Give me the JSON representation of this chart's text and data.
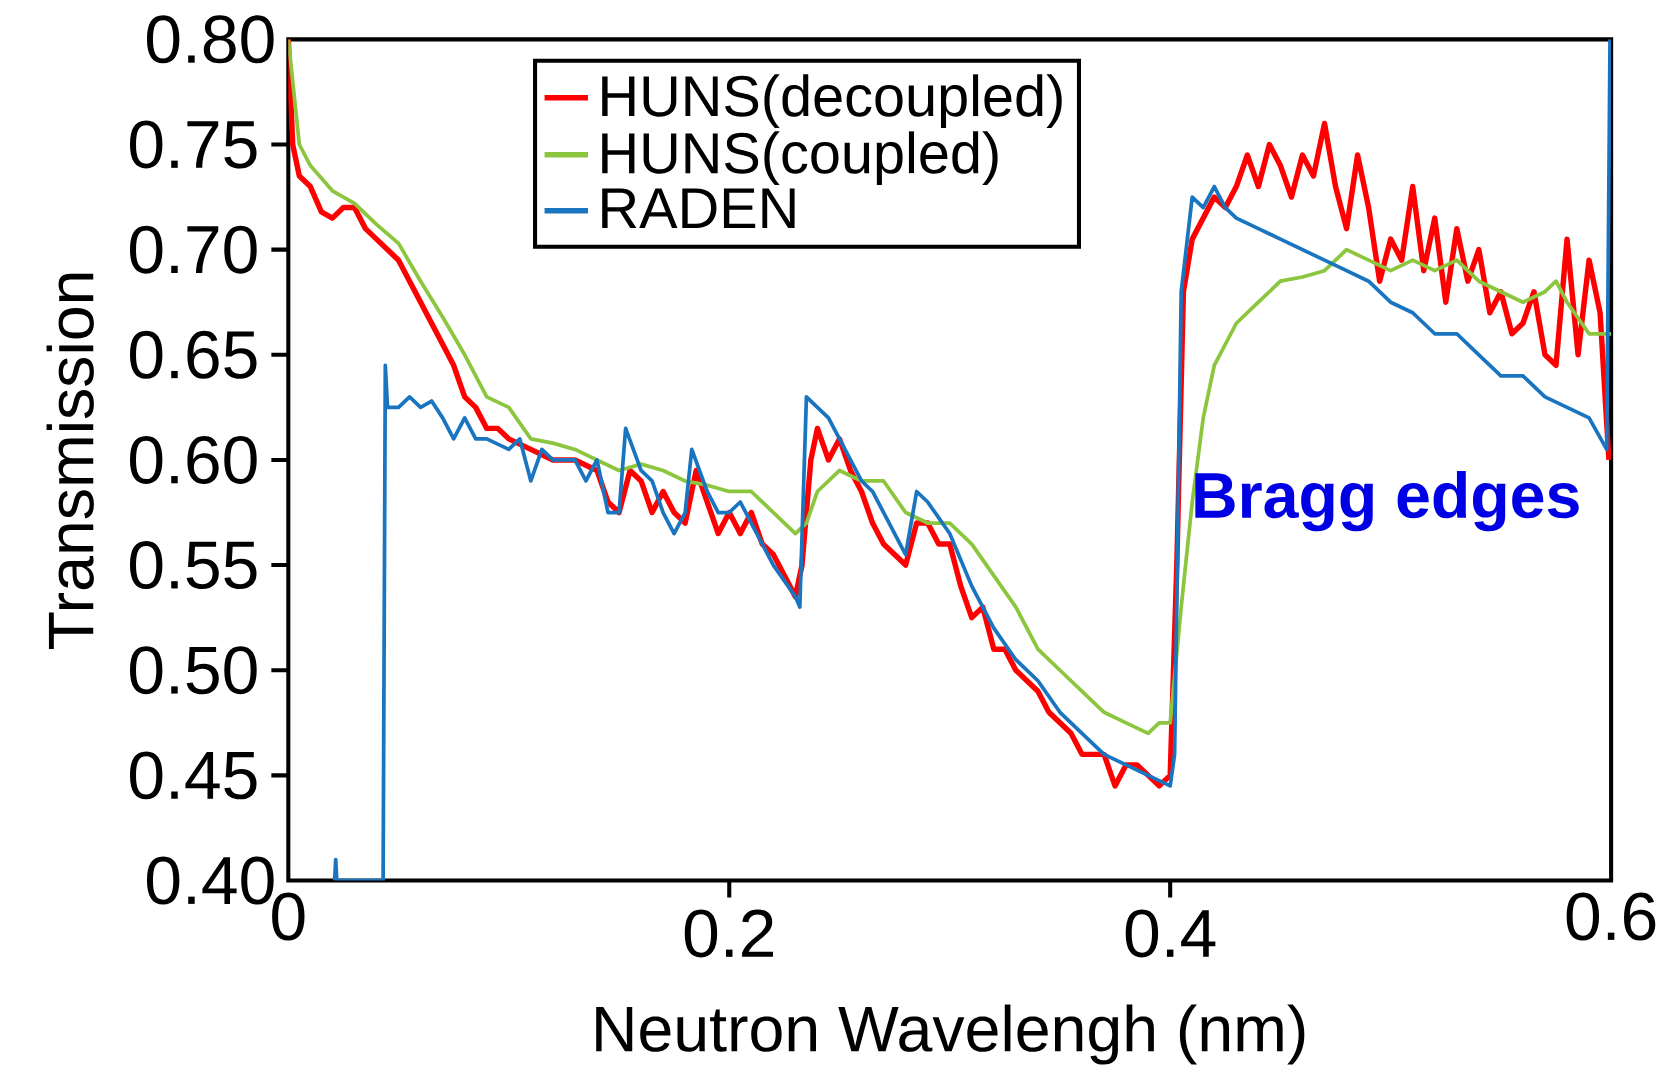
{
  "chart_data": {
    "type": "line",
    "xlabel": "Neutron Wavelengh (nm)",
    "ylabel": "Transmission",
    "xlim": [
      0,
      0.6
    ],
    "xticks": [
      0,
      0.2,
      0.4,
      0.6
    ],
    "ylim": [
      0.4,
      0.8
    ],
    "yticks": [
      {
        "value": 0.4,
        "label": "0.40"
      },
      {
        "value": 0.45,
        "label": "0.45"
      },
      {
        "value": 0.5,
        "label": "0.50"
      },
      {
        "value": 0.55,
        "label": "0.55"
      },
      {
        "value": 0.6,
        "label": "0.60"
      },
      {
        "value": 0.65,
        "label": "0.65"
      },
      {
        "value": 0.7,
        "label": "0.70"
      },
      {
        "value": 0.75,
        "label": "0.75"
      },
      {
        "value": 0.8,
        "label": "0.80"
      }
    ],
    "grid": false,
    "legend": "top",
    "marker": "none",
    "line_style": "solid",
    "annotations": [
      "Bragg edges"
    ],
    "series": [
      {
        "name": "HUNS(decoupled)",
        "color": "#ff0000",
        "x": [
          0.0,
          0.002,
          0.005,
          0.01,
          0.015,
          0.02,
          0.025,
          0.03,
          0.035,
          0.04,
          0.045,
          0.05,
          0.055,
          0.06,
          0.065,
          0.07,
          0.075,
          0.08,
          0.085,
          0.09,
          0.095,
          0.1,
          0.11,
          0.12,
          0.13,
          0.14,
          0.145,
          0.15,
          0.155,
          0.16,
          0.165,
          0.17,
          0.175,
          0.18,
          0.185,
          0.19,
          0.195,
          0.2,
          0.205,
          0.21,
          0.215,
          0.22,
          0.225,
          0.23,
          0.233,
          0.237,
          0.24,
          0.245,
          0.25,
          0.255,
          0.26,
          0.265,
          0.27,
          0.275,
          0.28,
          0.285,
          0.29,
          0.295,
          0.3,
          0.305,
          0.31,
          0.315,
          0.32,
          0.325,
          0.33,
          0.335,
          0.34,
          0.345,
          0.35,
          0.355,
          0.36,
          0.365,
          0.37,
          0.375,
          0.38,
          0.385,
          0.39,
          0.395,
          0.4,
          0.403,
          0.406,
          0.41,
          0.415,
          0.42,
          0.425,
          0.43,
          0.435,
          0.44,
          0.445,
          0.45,
          0.455,
          0.46,
          0.465,
          0.47,
          0.475,
          0.48,
          0.485,
          0.49,
          0.495,
          0.5,
          0.505,
          0.51,
          0.515,
          0.52,
          0.525,
          0.53,
          0.535,
          0.54,
          0.545,
          0.55,
          0.555,
          0.56,
          0.565,
          0.57,
          0.575,
          0.58,
          0.585,
          0.59,
          0.595,
          0.599
        ],
        "values": [
          0.8,
          0.75,
          0.735,
          0.73,
          0.718,
          0.715,
          0.72,
          0.72,
          0.71,
          0.705,
          0.7,
          0.695,
          0.685,
          0.675,
          0.665,
          0.655,
          0.645,
          0.63,
          0.625,
          0.615,
          0.615,
          0.61,
          0.605,
          0.6,
          0.6,
          0.595,
          0.58,
          0.575,
          0.595,
          0.59,
          0.575,
          0.585,
          0.575,
          0.57,
          0.595,
          0.58,
          0.565,
          0.575,
          0.565,
          0.575,
          0.56,
          0.555,
          0.545,
          0.535,
          0.55,
          0.6,
          0.615,
          0.6,
          0.61,
          0.595,
          0.585,
          0.57,
          0.56,
          0.555,
          0.55,
          0.57,
          0.57,
          0.56,
          0.56,
          0.54,
          0.525,
          0.53,
          0.51,
          0.51,
          0.5,
          0.495,
          0.49,
          0.48,
          0.475,
          0.47,
          0.46,
          0.46,
          0.46,
          0.445,
          0.455,
          0.455,
          0.45,
          0.445,
          0.45,
          0.55,
          0.68,
          0.705,
          0.715,
          0.725,
          0.72,
          0.73,
          0.745,
          0.73,
          0.75,
          0.74,
          0.725,
          0.745,
          0.735,
          0.76,
          0.73,
          0.71,
          0.745,
          0.72,
          0.685,
          0.705,
          0.695,
          0.73,
          0.69,
          0.715,
          0.675,
          0.71,
          0.685,
          0.7,
          0.67,
          0.68,
          0.66,
          0.665,
          0.68,
          0.65,
          0.645,
          0.705,
          0.65,
          0.695,
          0.67,
          0.6
        ]
      },
      {
        "name": "HUNS(coupled)",
        "color": "#8cc63f",
        "x": [
          0.0,
          0.005,
          0.01,
          0.02,
          0.03,
          0.04,
          0.05,
          0.06,
          0.07,
          0.08,
          0.085,
          0.09,
          0.1,
          0.11,
          0.12,
          0.13,
          0.14,
          0.15,
          0.16,
          0.17,
          0.18,
          0.19,
          0.2,
          0.21,
          0.22,
          0.23,
          0.235,
          0.24,
          0.25,
          0.26,
          0.27,
          0.28,
          0.29,
          0.3,
          0.31,
          0.32,
          0.33,
          0.34,
          0.35,
          0.36,
          0.37,
          0.38,
          0.39,
          0.395,
          0.4,
          0.405,
          0.41,
          0.415,
          0.42,
          0.43,
          0.44,
          0.45,
          0.46,
          0.47,
          0.48,
          0.49,
          0.5,
          0.51,
          0.52,
          0.53,
          0.54,
          0.55,
          0.56,
          0.57,
          0.575,
          0.58,
          0.59,
          0.6
        ],
        "values": [
          0.8,
          0.75,
          0.74,
          0.728,
          0.722,
          0.712,
          0.703,
          0.685,
          0.668,
          0.65,
          0.64,
          0.63,
          0.625,
          0.61,
          0.608,
          0.605,
          0.6,
          0.595,
          0.598,
          0.595,
          0.59,
          0.588,
          0.585,
          0.585,
          0.575,
          0.565,
          0.57,
          0.585,
          0.595,
          0.59,
          0.59,
          0.575,
          0.57,
          0.57,
          0.56,
          0.545,
          0.53,
          0.51,
          0.5,
          0.49,
          0.48,
          0.475,
          0.47,
          0.475,
          0.475,
          0.53,
          0.58,
          0.62,
          0.645,
          0.665,
          0.675,
          0.685,
          0.687,
          0.69,
          0.7,
          0.695,
          0.69,
          0.695,
          0.69,
          0.695,
          0.685,
          0.68,
          0.675,
          0.68,
          0.685,
          0.675,
          0.66,
          0.66
        ]
      },
      {
        "name": "RADEN",
        "color": "#1a75c0",
        "x": [
          0.021,
          0.0215,
          0.022,
          0.043,
          0.044,
          0.045,
          0.05,
          0.055,
          0.06,
          0.065,
          0.07,
          0.075,
          0.08,
          0.085,
          0.09,
          0.1,
          0.105,
          0.11,
          0.115,
          0.12,
          0.13,
          0.135,
          0.14,
          0.145,
          0.15,
          0.153,
          0.16,
          0.165,
          0.17,
          0.175,
          0.18,
          0.183,
          0.19,
          0.195,
          0.2,
          0.205,
          0.21,
          0.22,
          0.23,
          0.232,
          0.235,
          0.24,
          0.245,
          0.25,
          0.26,
          0.265,
          0.27,
          0.28,
          0.285,
          0.29,
          0.3,
          0.31,
          0.32,
          0.33,
          0.34,
          0.35,
          0.36,
          0.37,
          0.38,
          0.39,
          0.4,
          0.402,
          0.405,
          0.41,
          0.415,
          0.42,
          0.425,
          0.43,
          0.44,
          0.45,
          0.46,
          0.47,
          0.48,
          0.49,
          0.5,
          0.51,
          0.52,
          0.53,
          0.54,
          0.55,
          0.56,
          0.57,
          0.58,
          0.59,
          0.598,
          0.5995
        ],
        "values": [
          0.4,
          0.41,
          0.4,
          0.4,
          0.645,
          0.625,
          0.625,
          0.63,
          0.625,
          0.628,
          0.62,
          0.61,
          0.62,
          0.61,
          0.61,
          0.605,
          0.61,
          0.59,
          0.605,
          0.6,
          0.6,
          0.59,
          0.6,
          0.575,
          0.575,
          0.615,
          0.595,
          0.59,
          0.575,
          0.565,
          0.575,
          0.605,
          0.585,
          0.575,
          0.575,
          0.58,
          0.57,
          0.55,
          0.535,
          0.53,
          0.63,
          0.625,
          0.62,
          0.61,
          0.59,
          0.585,
          0.575,
          0.555,
          0.585,
          0.58,
          0.565,
          0.54,
          0.52,
          0.505,
          0.495,
          0.48,
          0.47,
          0.46,
          0.455,
          0.45,
          0.445,
          0.46,
          0.68,
          0.725,
          0.72,
          0.73,
          0.72,
          0.715,
          0.71,
          0.705,
          0.7,
          0.695,
          0.69,
          0.685,
          0.675,
          0.67,
          0.66,
          0.66,
          0.65,
          0.64,
          0.64,
          0.63,
          0.625,
          0.62,
          0.605,
          0.8
        ]
      }
    ]
  }
}
